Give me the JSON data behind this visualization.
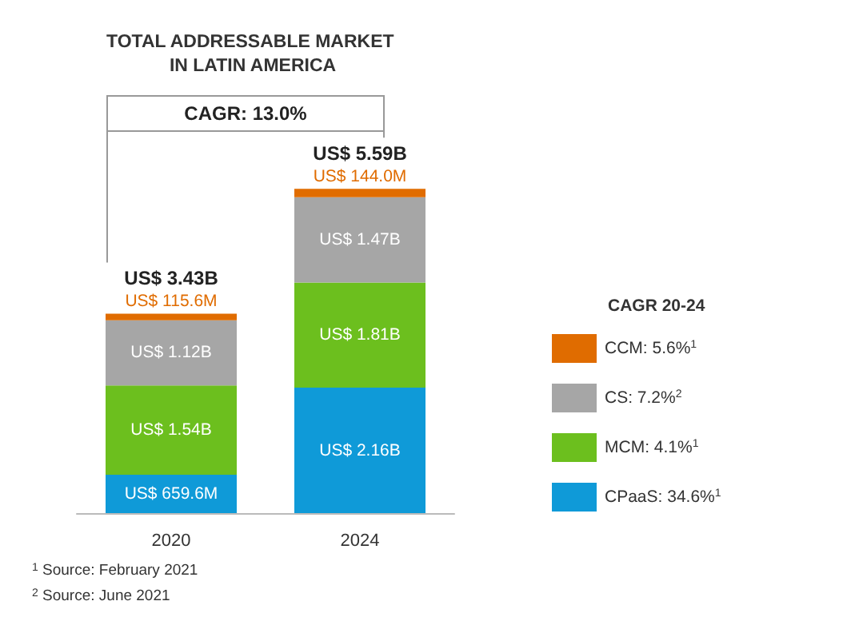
{
  "chart_data": {
    "type": "bar",
    "title": "TOTAL ADDRESSABLE MARKET IN LATIN AMERICA",
    "categories": [
      "2020",
      "2024"
    ],
    "stacked": true,
    "legend": "right",
    "legend_title": "CAGR 20-24",
    "tick_labels": "x",
    "series": [
      {
        "name": "CPaaS: 34.6%$^{1}$",
        "color": "#0f9ad8",
        "values": [
          659600000,
          2160000000
        ],
        "value_labels": [
          "US$ 659.6M",
          "US$ 2.16B"
        ]
      },
      {
        "name": "MCM: 4.1%$^{1}$",
        "color": "#6cbf1e",
        "values": [
          1540000000,
          1810000000
        ],
        "value_labels": [
          "US$ 1.54B",
          "US$ 1.81B"
        ]
      },
      {
        "name": "CS: 7.2%$^{2}$",
        "color": "#a6a6a6",
        "values": [
          1120000000,
          1470000000
        ],
        "value_labels": [
          "US$ 1.12B",
          "US$ 1.47B"
        ]
      },
      {
        "name": "CCM: 5.6%$^{1}$",
        "color": "#e06c00",
        "values": [
          115600000,
          144000000
        ],
        "value_labels": [
          "US$ 115.6M",
          "US$ 144.0M"
        ]
      }
    ],
    "totals": [
      "US$ 3.43B",
      "US$ 5.59B"
    ],
    "annotations": [
      "CAGR: 13.0%",
      "$^{1}$ Source: February 2021",
      "$^{2}$ Source: June 2021"
    ]
  }
}
